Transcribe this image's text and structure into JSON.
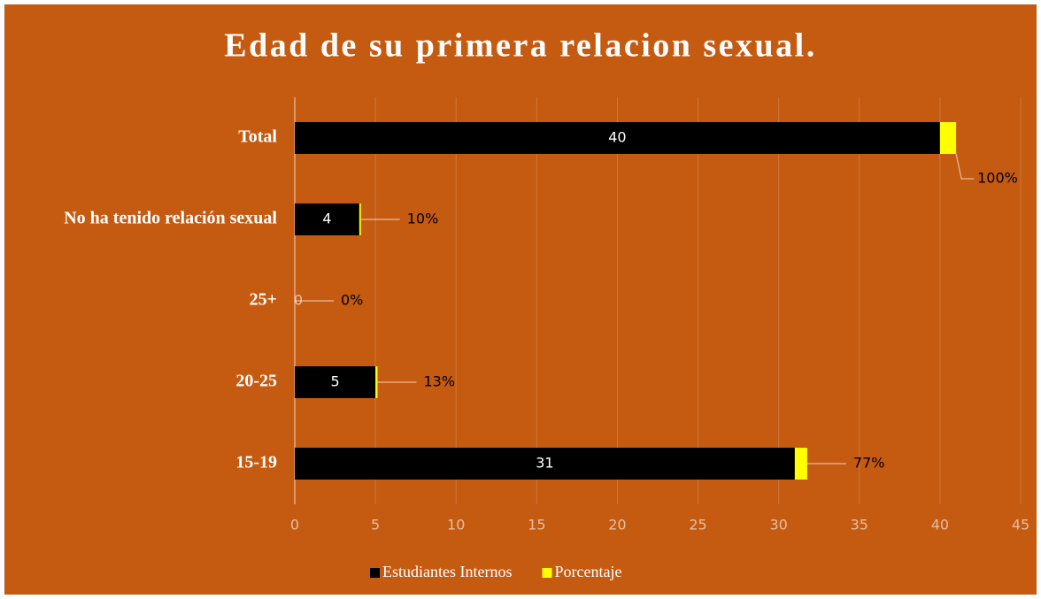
{
  "chart_data": {
    "type": "stacked-bar-horizontal",
    "title": "Edad de su primera relacion sexual.",
    "categories": [
      "15-19",
      "20-25",
      "25+",
      "No ha tenido relación sexual",
      "Total"
    ],
    "series": [
      {
        "name": "Estudiantes Internos",
        "color": "#000000",
        "values": [
          31,
          5,
          0,
          4,
          40
        ]
      },
      {
        "name": "Porcentaje",
        "color": "#FFFF00",
        "values": [
          0.77,
          0.13,
          0,
          0.1,
          1
        ],
        "value_labels": [
          "77%",
          "13%",
          "0%",
          "10%",
          "100%"
        ]
      }
    ],
    "xlim": [
      0,
      45
    ],
    "xticks": [
      0,
      5,
      10,
      15,
      20,
      25,
      30,
      35,
      40,
      45
    ],
    "grid": true,
    "legend": "bottom",
    "background": "#C55A11"
  }
}
